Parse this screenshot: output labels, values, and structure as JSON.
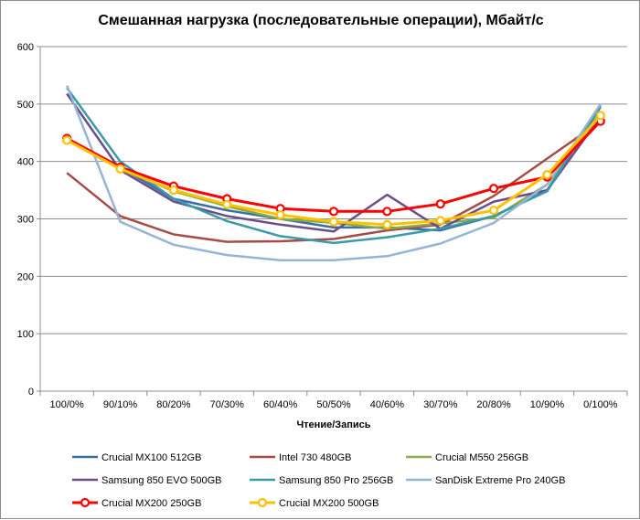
{
  "chart_data": {
    "type": "line",
    "title": "Смешанная нагрузка (последовательные операции), Мбайт/с",
    "xlabel": "Чтение/Запись",
    "ylabel": "",
    "ylim": [
      0,
      600
    ],
    "y_ticks": [
      0,
      100,
      200,
      300,
      400,
      500,
      600
    ],
    "grid": "horizontal",
    "legend_position": "bottom",
    "categories": [
      "100/0%",
      "90/10%",
      "80/20%",
      "70/30%",
      "60/40%",
      "50/50%",
      "40/60%",
      "30/70%",
      "20/80%",
      "10/90%",
      "0/100%"
    ],
    "series": [
      {
        "name": "Crucial MX100 512GB",
        "color": "#3a6ea8",
        "marker": "none",
        "values": [
          440,
          390,
          335,
          315,
          300,
          285,
          285,
          280,
          305,
          350,
          495
        ]
      },
      {
        "name": "Intel 730 480GB",
        "color": "#a64b46",
        "marker": "none",
        "values": [
          380,
          305,
          273,
          260,
          261,
          265,
          280,
          290,
          340,
          405,
          470
        ]
      },
      {
        "name": "Crucial M550 256GB",
        "color": "#8bac45",
        "marker": "none",
        "values": [
          438,
          388,
          348,
          322,
          300,
          293,
          283,
          292,
          302,
          360,
          485
        ]
      },
      {
        "name": "Samsung 850 EVO 500GB",
        "color": "#6b4d8b",
        "marker": "none",
        "values": [
          518,
          385,
          330,
          305,
          290,
          278,
          342,
          283,
          330,
          350,
          478
        ]
      },
      {
        "name": "Samsung 850 Pro 256GB",
        "color": "#3a9ba8",
        "marker": "none",
        "values": [
          528,
          400,
          335,
          296,
          270,
          258,
          268,
          283,
          305,
          348,
          498
        ]
      },
      {
        "name": "SanDisk Extreme Pro 240GB",
        "color": "#96b3d8",
        "marker": "none",
        "values": [
          532,
          295,
          255,
          237,
          228,
          228,
          235,
          257,
          293,
          360,
          500
        ]
      },
      {
        "name": "Crucial MX200 250GB",
        "color": "#ff0000",
        "marker": "circle",
        "values": [
          440,
          390,
          357,
          335,
          318,
          313,
          313,
          326,
          353,
          373,
          470
        ]
      },
      {
        "name": "Crucial MX200 500GB",
        "color": "#ffc000",
        "marker": "circle",
        "values": [
          437,
          387,
          350,
          325,
          307,
          295,
          290,
          297,
          315,
          377,
          480
        ]
      }
    ]
  }
}
